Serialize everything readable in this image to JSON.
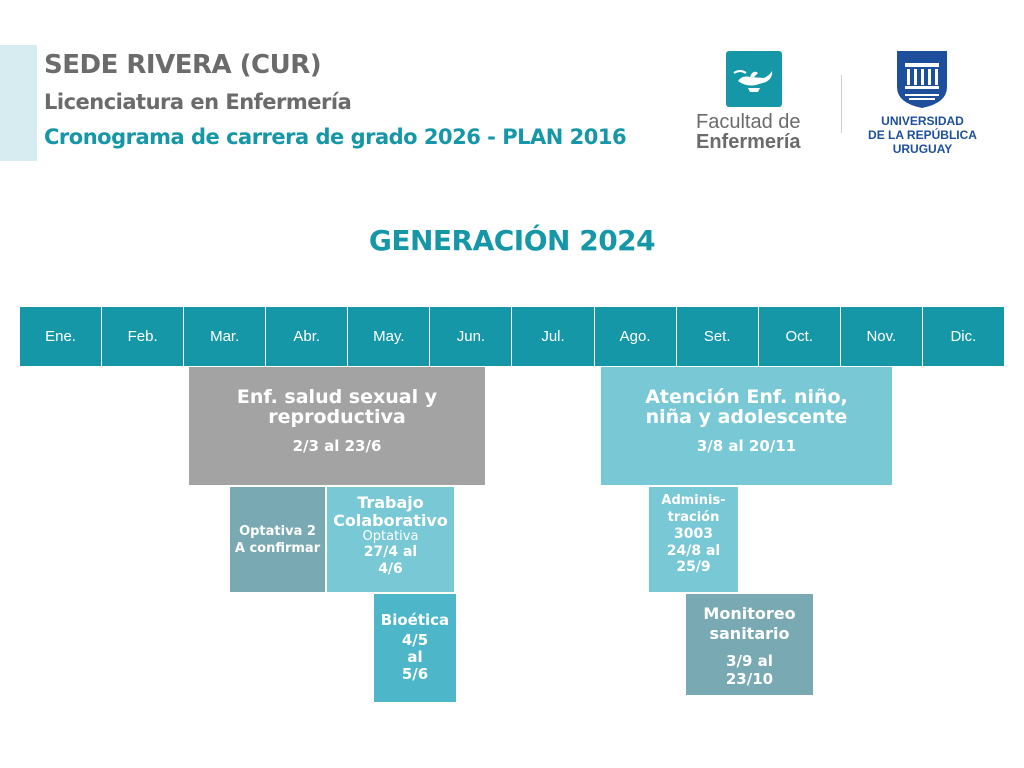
{
  "header": {
    "line1": "SEDE RIVERA (CUR)",
    "line2": "Licenciatura en Enfermería",
    "line3": "Cronograma de carrera de grado 2026 - PLAN 2016"
  },
  "logos": {
    "facultad_line1": "Facultad de",
    "facultad_line2": "Enfermería",
    "udelar_line1": "UNIVERSIDAD",
    "udelar_line2": "DE LA REPÚBLICA",
    "udelar_line3": "URUGUAY"
  },
  "generation_title": "GENERACIÓN 2024",
  "months": [
    "Ene.",
    "Feb.",
    "Mar.",
    "Abr.",
    "May.",
    "Jun.",
    "Jul.",
    "Ago.",
    "Set.",
    "Oct.",
    "Nov.",
    "Dic."
  ],
  "courses": {
    "ssr": {
      "title1": "Enf. salud sexual y",
      "title2": "reproductiva",
      "dates": "2/3 al 23/6"
    },
    "ninez": {
      "title1": "Atención Enf. niño,",
      "title2": "niña y adolescente",
      "dates": "3/8 al 20/11"
    },
    "optativa2": {
      "line1": "Optativa 2",
      "line2": "A confirmar"
    },
    "trabajo": {
      "title1": "Trabajo",
      "title2": "Colaborativo",
      "sub": "Optativa",
      "dates1": "27/4 al",
      "dates2": "4/6"
    },
    "bioetica": {
      "title": "Bioética",
      "d1": "4/5",
      "d2": "al",
      "d3": "5/6"
    },
    "admin": {
      "l1": "Adminis-",
      "l2": "tración",
      "l3": "3003",
      "l4": "24/8 al",
      "l5": "25/9"
    },
    "monitoreo": {
      "title1": "Monitoreo",
      "title2": "sanitario",
      "dates1": "3/9 al",
      "dates2": "23/10"
    }
  },
  "colors": {
    "teal": "#1597a8",
    "gray_block": "#a3a3a3",
    "light_teal": "#79c8d5",
    "steel": "#79a9b3",
    "bright_teal": "#4db7c9"
  }
}
